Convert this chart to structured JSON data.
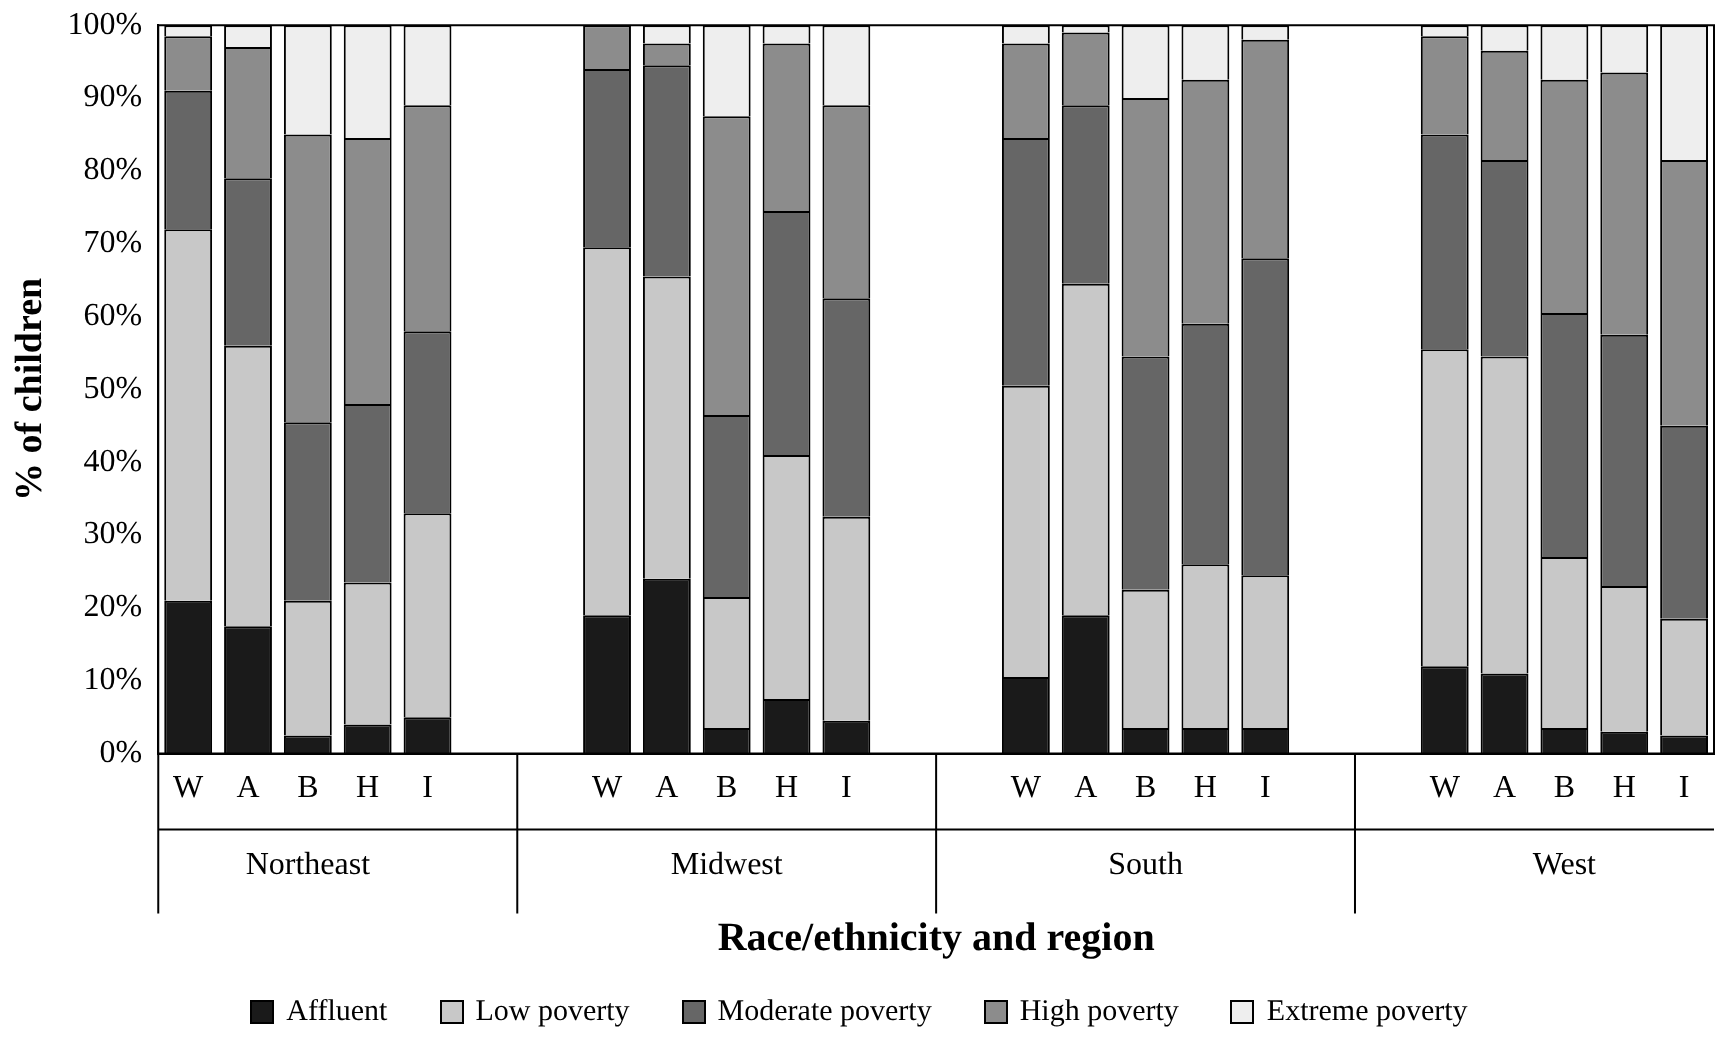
{
  "chart_data": {
    "type": "bar",
    "stacked": true,
    "xlabel": "Race/ethnicity and region",
    "ylabel": "% of children",
    "categories": [
      "W",
      "A",
      "B",
      "H",
      "I",
      null,
      null,
      "W",
      "A",
      "B",
      "H",
      "I",
      null,
      null,
      "W",
      "A",
      "B",
      "H",
      "I",
      null,
      null,
      "W",
      "A",
      "B",
      "H",
      "I"
    ],
    "series": [
      {
        "name": "Affluent",
        "color": "#1a1a1a",
        "values": [
          21,
          17.5,
          2.5,
          4,
          5,
          null,
          null,
          19,
          24,
          3.5,
          7.5,
          4.5,
          null,
          null,
          10.5,
          19,
          3.5,
          3.5,
          3.5,
          null,
          null,
          12,
          11,
          3.5,
          3,
          2.5
        ]
      },
      {
        "name": "Low poverty",
        "color": "#c8c8c8",
        "values": [
          51,
          38.5,
          18.5,
          19.5,
          28,
          null,
          null,
          50.5,
          41.5,
          18,
          33.5,
          28,
          null,
          null,
          40,
          45.5,
          19,
          22.5,
          21,
          null,
          null,
          43.5,
          43.5,
          23.5,
          20,
          16
        ]
      },
      {
        "name": "Moderate poverty",
        "color": "#666666",
        "values": [
          19,
          23,
          24.5,
          24.5,
          25,
          null,
          null,
          24.5,
          29,
          25,
          33.5,
          30,
          null,
          null,
          34,
          24.5,
          32,
          33,
          43.5,
          null,
          null,
          29.5,
          27,
          33.5,
          34.5,
          26.5
        ]
      },
      {
        "name": "High poverty",
        "color": "#8c8c8c",
        "values": [
          7.5,
          18,
          39.5,
          36.5,
          31,
          null,
          null,
          6,
          3,
          41,
          23,
          26.5,
          null,
          null,
          13,
          10,
          35.5,
          33.5,
          30,
          null,
          null,
          13.5,
          15,
          32,
          36,
          36.5
        ]
      },
      {
        "name": "Extreme poverty",
        "color": "#eeeeee",
        "values": [
          1.5,
          3,
          15,
          15.5,
          11,
          null,
          null,
          0,
          2.5,
          12.5,
          2.5,
          11,
          null,
          null,
          2.5,
          1,
          10,
          7.5,
          2,
          null,
          null,
          1.5,
          3.5,
          7.5,
          6.5,
          18.5
        ]
      }
    ],
    "ylim": [
      0,
      100
    ],
    "yticks": [
      {
        "value": 0,
        "label": "0%"
      },
      {
        "value": 10,
        "label": "10%"
      },
      {
        "value": 20,
        "label": "20%"
      },
      {
        "value": 30,
        "label": "30%"
      },
      {
        "value": 40,
        "label": "40%"
      },
      {
        "value": 50,
        "label": "50%"
      },
      {
        "value": 60,
        "label": "60%"
      },
      {
        "value": 70,
        "label": "70%"
      },
      {
        "value": 80,
        "label": "80%"
      },
      {
        "value": 90,
        "label": "90%"
      },
      {
        "value": 100,
        "label": "100%"
      }
    ],
    "annotations": [
      "Northeast",
      "Midwest",
      "South",
      "West"
    ],
    "grid": false,
    "legend": "bottom"
  }
}
